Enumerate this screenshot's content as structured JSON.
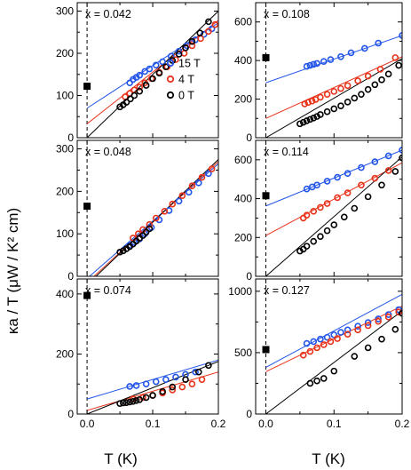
{
  "figure": {
    "ylabel": "κa / T (μW / K² cm)",
    "xlabel": "T (K)"
  },
  "chart_data": [
    {
      "type": "scatter",
      "label": "x = 0.042",
      "xlim": [
        -0.015,
        0.2
      ],
      "ylim": [
        0,
        320
      ],
      "xticks": [
        "0.0",
        "0.1",
        "0.2"
      ],
      "yticks": [
        0,
        100,
        200,
        300
      ],
      "legend": {
        "placement": "right",
        "entries": [
          "15 T",
          "4 T",
          "0 T"
        ]
      },
      "zero_field_extrapolation": 122,
      "series": [
        {
          "name": "15 T",
          "color": "#2255e8",
          "x": [
            0.065,
            0.07,
            0.075,
            0.08,
            0.088,
            0.095,
            0.105,
            0.115,
            0.128,
            0.14,
            0.152,
            0.165,
            0.178,
            0.19
          ],
          "y": [
            130,
            138,
            143,
            148,
            157,
            163,
            172,
            180,
            193,
            205,
            218,
            232,
            245,
            258
          ],
          "fit": {
            "x": [
              0,
              0.2
            ],
            "y": [
              70,
              272
            ]
          }
        },
        {
          "name": "4 T",
          "color": "#e8331a",
          "x": [
            0.058,
            0.065,
            0.072,
            0.08,
            0.088,
            0.098,
            0.11,
            0.122,
            0.135,
            0.148,
            0.16,
            0.173,
            0.185,
            0.195
          ],
          "y": [
            97,
            105,
            113,
            120,
            130,
            140,
            155,
            168,
            185,
            200,
            218,
            235,
            252,
            268
          ],
          "fit": {
            "x": [
              0,
              0.2
            ],
            "y": [
              33,
              278
            ]
          }
        },
        {
          "name": "0 T",
          "color": "#000000",
          "x": [
            0.05,
            0.055,
            0.06,
            0.066,
            0.072,
            0.08,
            0.09,
            0.1,
            0.11,
            0.12,
            0.13,
            0.14,
            0.15,
            0.16,
            0.172,
            0.185
          ],
          "y": [
            73,
            78,
            84,
            92,
            100,
            110,
            124,
            140,
            153,
            168,
            183,
            198,
            213,
            228,
            248,
            275
          ],
          "fit": {
            "x": [
              0,
              0.2
            ],
            "y": [
              0,
              300
            ]
          }
        }
      ]
    },
    {
      "type": "scatter",
      "label": "x = 0.108",
      "xlim": [
        -0.015,
        0.2
      ],
      "ylim": [
        0,
        700
      ],
      "xticks": [
        "0.0",
        "0.1",
        "0.2"
      ],
      "yticks": [
        0,
        200,
        400,
        600
      ],
      "zero_field_extrapolation": 415,
      "series": [
        {
          "name": "15 T",
          "color": "#2255e8",
          "x": [
            0.06,
            0.065,
            0.07,
            0.075,
            0.085,
            0.095,
            0.11,
            0.125,
            0.145,
            0.165,
            0.2
          ],
          "y": [
            370,
            375,
            380,
            385,
            395,
            405,
            420,
            440,
            463,
            490,
            530
          ],
          "fit": {
            "x": [
              0,
              0.2
            ],
            "y": [
              285,
              530
            ]
          }
        },
        {
          "name": "4 T",
          "color": "#e8331a",
          "x": [
            0.057,
            0.062,
            0.068,
            0.073,
            0.08,
            0.09,
            0.1,
            0.11,
            0.12,
            0.135,
            0.15,
            0.168,
            0.19
          ],
          "y": [
            175,
            183,
            190,
            198,
            210,
            225,
            240,
            255,
            270,
            295,
            320,
            355,
            415
          ],
          "fit": {
            "x": [
              0,
              0.2
            ],
            "y": [
              100,
              420
            ]
          }
        },
        {
          "name": "0 T",
          "color": "#000000",
          "x": [
            0.05,
            0.055,
            0.06,
            0.065,
            0.07,
            0.075,
            0.08,
            0.09,
            0.1,
            0.11,
            0.12,
            0.13,
            0.14,
            0.15,
            0.16,
            0.17,
            0.18,
            0.195
          ],
          "y": [
            72,
            80,
            88,
            95,
            102,
            110,
            120,
            135,
            150,
            165,
            185,
            205,
            225,
            250,
            275,
            300,
            330,
            375
          ],
          "fit": {
            "x": [
              0,
              0.2
            ],
            "y": [
              0,
              410
            ]
          }
        }
      ]
    },
    {
      "type": "scatter",
      "label": "x = 0.048",
      "xlim": [
        -0.015,
        0.2
      ],
      "ylim": [
        0,
        320
      ],
      "xticks": [
        "0.0",
        "0.1",
        "0.2"
      ],
      "yticks": [
        0,
        100,
        200,
        300
      ],
      "zero_field_extrapolation": 165,
      "series": [
        {
          "name": "15 T",
          "color": "#2255e8",
          "x": [
            0.065,
            0.072,
            0.08,
            0.088,
            0.098,
            0.11,
            0.125,
            0.14,
            0.155,
            0.17,
            0.185
          ],
          "y": [
            73,
            80,
            88,
            100,
            115,
            133,
            155,
            177,
            198,
            220,
            242
          ],
          "fit": {
            "x": [
              0,
              0.2
            ],
            "y": [
              -5,
              265
            ]
          }
        },
        {
          "name": "4 T",
          "color": "#e8331a",
          "x": [
            0.07,
            0.078,
            0.085,
            0.095,
            0.105,
            0.118,
            0.13,
            0.145,
            0.16,
            0.175,
            0.19
          ],
          "y": [
            90,
            100,
            110,
            122,
            137,
            153,
            170,
            190,
            213,
            233,
            253
          ],
          "fit": {
            "x": [
              0,
              0.2
            ],
            "y": [
              -15,
              270
            ]
          }
        },
        {
          "name": "0 T",
          "color": "#000000",
          "x": [
            0.05,
            0.055,
            0.06,
            0.065,
            0.07,
            0.075,
            0.08,
            0.085,
            0.09,
            0.095
          ],
          "y": [
            57,
            60,
            65,
            70,
            76,
            83,
            90,
            96,
            104,
            112
          ],
          "fit": {
            "x": [
              0,
              0.2
            ],
            "y": [
              -20,
              275
            ]
          }
        }
      ]
    },
    {
      "type": "scatter",
      "label": "x = 0.114",
      "xlim": [
        -0.015,
        0.2
      ],
      "ylim": [
        0,
        700
      ],
      "xticks": [
        "0.0",
        "0.1",
        "0.2"
      ],
      "yticks": [
        0,
        200,
        400,
        600
      ],
      "zero_field_extrapolation": 415,
      "series": [
        {
          "name": "15 T",
          "color": "#2255e8",
          "x": [
            0.06,
            0.068,
            0.075,
            0.09,
            0.105,
            0.12,
            0.14,
            0.16,
            0.18,
            0.2
          ],
          "y": [
            450,
            460,
            470,
            490,
            510,
            530,
            560,
            590,
            620,
            650
          ],
          "fit": {
            "x": [
              0,
              0.2
            ],
            "y": [
              362,
              650
            ]
          }
        },
        {
          "name": "4 T",
          "color": "#e8331a",
          "x": [
            0.055,
            0.06,
            0.07,
            0.08,
            0.09,
            0.105,
            0.12,
            0.14,
            0.16,
            0.18
          ],
          "y": [
            300,
            315,
            335,
            355,
            375,
            405,
            430,
            470,
            505,
            545
          ],
          "fit": {
            "x": [
              0,
              0.2
            ],
            "y": [
              210,
              585
            ]
          }
        },
        {
          "name": "0 T",
          "color": "#000000",
          "x": [
            0.05,
            0.055,
            0.06,
            0.07,
            0.08,
            0.09,
            0.1,
            0.115,
            0.13,
            0.15,
            0.17,
            0.19,
            0.2
          ],
          "y": [
            130,
            140,
            155,
            180,
            205,
            235,
            265,
            305,
            350,
            410,
            470,
            540,
            610
          ],
          "fit": {
            "x": [
              0,
              0.2
            ],
            "y": [
              0,
              615
            ]
          }
        }
      ]
    },
    {
      "type": "scatter",
      "label": "x = 0.074",
      "xlim": [
        -0.015,
        0.2
      ],
      "ylim": [
        0,
        450
      ],
      "xticks": [
        "0.0",
        "0.1",
        "0.2"
      ],
      "yticks": [
        0,
        200,
        400
      ],
      "zero_field_extrapolation": 395,
      "series": [
        {
          "name": "15 T",
          "color": "#2255e8",
          "x": [
            0.065,
            0.075,
            0.09,
            0.105,
            0.12,
            0.135,
            0.15,
            0.165
          ],
          "y": [
            92,
            95,
            100,
            108,
            115,
            123,
            132,
            140
          ],
          "fit": {
            "x": [
              0,
              0.2
            ],
            "y": [
              50,
              180
            ]
          }
        },
        {
          "name": "4 T",
          "color": "#e8331a",
          "x": [
            0.07,
            0.085,
            0.1,
            0.115,
            0.13,
            0.145,
            0.16,
            0.175
          ],
          "y": [
            50,
            55,
            62,
            70,
            80,
            90,
            100,
            115
          ],
          "fit": {
            "x": [
              0,
              0.2
            ],
            "y": [
              12,
              140
            ]
          }
        },
        {
          "name": "0 T",
          "color": "#000000",
          "x": [
            0.05,
            0.055,
            0.06,
            0.065,
            0.07,
            0.075,
            0.08,
            0.09,
            0.1,
            0.115,
            0.13,
            0.15,
            0.17,
            0.185
          ],
          "y": [
            35,
            37,
            38,
            40,
            42,
            45,
            48,
            55,
            62,
            75,
            90,
            115,
            140,
            162
          ],
          "fit": {
            "x": [
              0,
              0.2
            ],
            "y": [
              0,
              175
            ]
          }
        }
      ]
    },
    {
      "type": "scatter",
      "label": "x = 0.127",
      "xlim": [
        -0.015,
        0.2
      ],
      "ylim": [
        0,
        1100
      ],
      "xticks": [
        "0.0",
        "0.1",
        "0.2"
      ],
      "yticks": [
        0,
        500,
        1000
      ],
      "zero_field_extrapolation": 525,
      "series": [
        {
          "name": "15 T",
          "color": "#2255e8",
          "x": [
            0.06,
            0.07,
            0.08,
            0.09,
            0.1,
            0.11,
            0.12,
            0.135,
            0.15,
            0.165,
            0.18,
            0.195
          ],
          "y": [
            575,
            590,
            610,
            625,
            645,
            665,
            685,
            715,
            745,
            775,
            810,
            850
          ],
          "fit": {
            "x": [
              0,
              0.2
            ],
            "y": [
              380,
              975
            ]
          }
        },
        {
          "name": "4 T",
          "color": "#e8331a",
          "x": [
            0.055,
            0.065,
            0.075,
            0.085,
            0.095,
            0.105,
            0.12,
            0.135,
            0.15,
            0.165,
            0.18,
            0.195
          ],
          "y": [
            480,
            510,
            540,
            565,
            590,
            615,
            650,
            685,
            720,
            755,
            790,
            830
          ],
          "fit": {
            "x": [
              0,
              0.2
            ],
            "y": [
              345,
              880
            ]
          }
        },
        {
          "name": "0 T",
          "color": "#000000",
          "x": [
            0.065,
            0.075,
            0.085,
            0.1,
            0.13,
            0.15,
            0.17,
            0.19,
            0.2
          ],
          "y": [
            250,
            270,
            290,
            350,
            470,
            540,
            610,
            690,
            820
          ],
          "fit": {
            "x": [
              0,
              0.2
            ],
            "y": [
              0,
              840
            ]
          }
        }
      ]
    }
  ]
}
